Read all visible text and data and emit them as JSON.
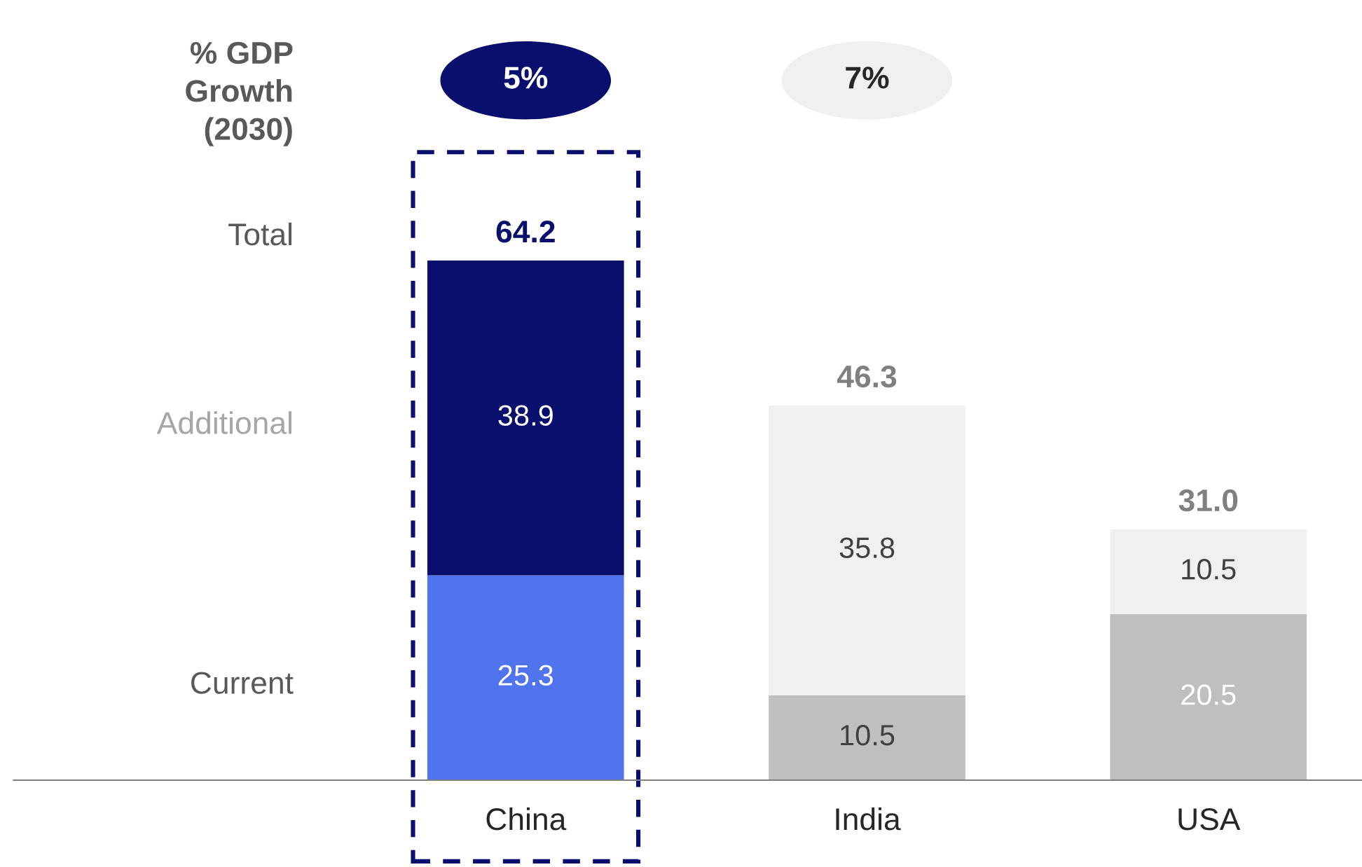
{
  "chart_data": {
    "type": "bar",
    "stacked": true,
    "categories": [
      "China",
      "India",
      "USA"
    ],
    "series": [
      {
        "values": [
          25.3,
          10.5,
          20.5
        ],
        "colors": [
          "#4f74ee",
          "#bfbfbf",
          "#bfbfbf"
        ]
      },
      {
        "values": [
          38.9,
          35.8,
          10.5
        ],
        "colors": [
          "#0a0f6e",
          "#f0f0f0",
          "#f0f0f0"
        ]
      }
    ],
    "totals": [
      "64.2",
      "46.3",
      "31.0"
    ],
    "data_labels": true,
    "annotations": [
      "% GDP\nGrowth\n(2030)",
      "Total",
      "Additional",
      "Current",
      "5%",
      "7%"
    ],
    "tick_labels": "x",
    "grid": false,
    "legend": false
  }
}
